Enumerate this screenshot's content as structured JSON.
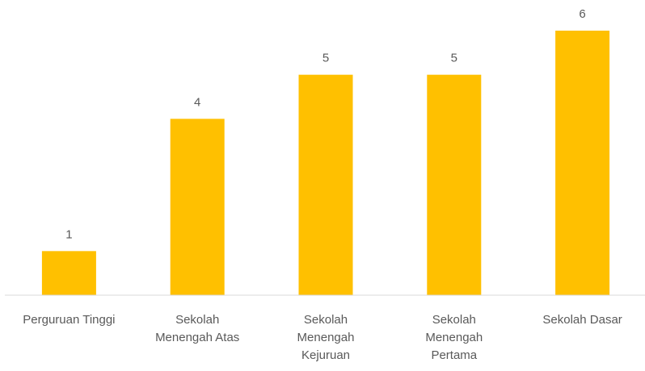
{
  "chart_data": {
    "type": "bar",
    "categories": [
      "Perguruan Tinggi",
      "Sekolah Menengah Atas",
      "Sekolah Menengah Kejuruan",
      "Sekolah Menengah Pertama",
      "Sekolah Dasar"
    ],
    "values": [
      1,
      4,
      5,
      5,
      6
    ],
    "color": "#ffc000",
    "ylim": [
      0,
      6
    ]
  }
}
